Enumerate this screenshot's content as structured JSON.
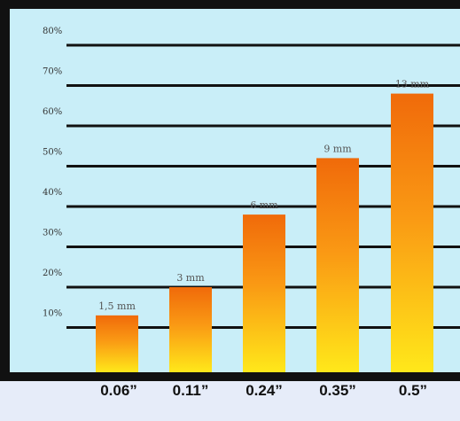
{
  "chart_data": {
    "type": "bar",
    "categories": [
      "0.06”",
      "0.11”",
      "0.24”",
      "0.35”",
      "0.5”"
    ],
    "values": [
      13,
      20,
      38,
      52,
      68
    ],
    "bar_labels": [
      "1,5 mm",
      "3 mm",
      "6 mm",
      "9 mm",
      "13 mm"
    ],
    "y_ticks": [
      10,
      20,
      30,
      40,
      50,
      60,
      70,
      80
    ],
    "y_tick_labels": [
      "10%",
      "20%",
      "30%",
      "40%",
      "50%",
      "60%",
      "70%",
      "80%"
    ],
    "ylim": [
      0,
      86
    ],
    "grid": true,
    "title": "",
    "xlabel": "",
    "ylabel": ""
  },
  "colors": {
    "page_bg": "#e6ecf9",
    "plot_bg": "#c9eef8",
    "frame": "#111111",
    "grid": "#111111",
    "bar_top": "#f06a0a",
    "bar_mid": "#fa9a14",
    "bar_bottom": "#ffe81a"
  }
}
